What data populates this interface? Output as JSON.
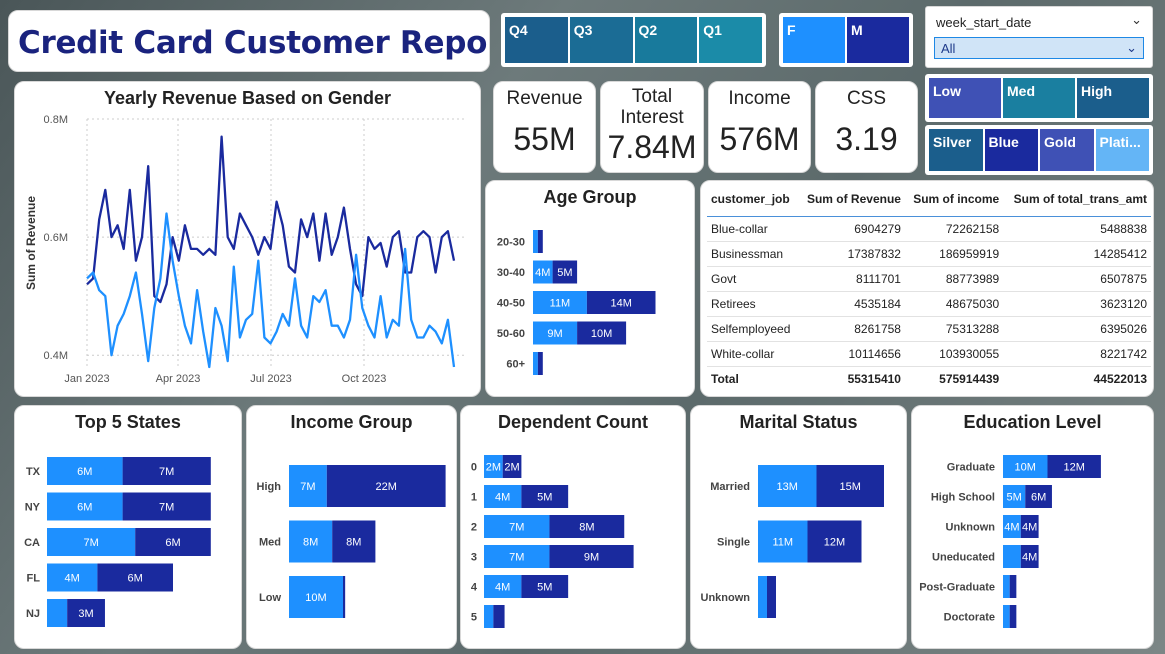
{
  "title": "Credit Card Customer Report",
  "colors": {
    "female": "#1e90ff",
    "male": "#1a2a9e",
    "navy": "#1a237e"
  },
  "quarters": [
    {
      "label": "Q4",
      "color": "#1b5e8c"
    },
    {
      "label": "Q3",
      "color": "#1b6c95"
    },
    {
      "label": "Q2",
      "color": "#187a9c"
    },
    {
      "label": "Q1",
      "color": "#1b8ba8"
    }
  ],
  "gender": [
    {
      "label": "F",
      "color": "#1e90ff"
    },
    {
      "label": "M",
      "color": "#1a2a9e"
    }
  ],
  "week_filter": {
    "label": "week_start_date",
    "value": "All"
  },
  "income_slicer": [
    {
      "label": "Low",
      "color": "#3f51b5"
    },
    {
      "label": "Med",
      "color": "#1a7fa0"
    },
    {
      "label": "High",
      "color": "#1b5e8c"
    }
  ],
  "card_slicer": [
    {
      "label": "Silver",
      "color": "#1b5e8c"
    },
    {
      "label": "Blue",
      "color": "#1a2a9e"
    },
    {
      "label": "Gold",
      "color": "#3f51b5"
    },
    {
      "label": "Plati...",
      "color": "#64b5f6"
    }
  ],
  "kpis": [
    {
      "label": "Revenue",
      "value": "55M"
    },
    {
      "label": "Total Interest",
      "value": "7.84M"
    },
    {
      "label": "Income",
      "value": "576M"
    },
    {
      "label": "CSS",
      "value": "3.19"
    }
  ],
  "chart_data": [
    {
      "type": "line",
      "title": "Yearly Revenue Based on Gender",
      "ylabel": "Sum of Revenue",
      "ylim": [
        0.38,
        0.8
      ],
      "y_ticks": [
        "0.8M",
        "0.6M",
        "0.4M"
      ],
      "x_ticks": [
        "Jan 2023",
        "Apr 2023",
        "Jul 2023",
        "Oct 2023"
      ],
      "grid": true,
      "series": [
        {
          "name": "M",
          "values": [
            0.52,
            0.53,
            0.63,
            0.68,
            0.6,
            0.62,
            0.58,
            0.68,
            0.56,
            0.6,
            0.72,
            0.5,
            0.49,
            0.52,
            0.6,
            0.56,
            0.62,
            0.58,
            0.58,
            0.57,
            0.58,
            0.57,
            0.77,
            0.6,
            0.58,
            0.64,
            0.62,
            0.6,
            0.57,
            0.6,
            0.58,
            0.66,
            0.62,
            0.55,
            0.54,
            0.63,
            0.6,
            0.64,
            0.56,
            0.64,
            0.57,
            0.6,
            0.65,
            0.58,
            0.52,
            0.5,
            0.6,
            0.58,
            0.59,
            0.55,
            0.6,
            0.61,
            0.54,
            0.54,
            0.6,
            0.61,
            0.6,
            0.54,
            0.6,
            0.61,
            0.56
          ]
        },
        {
          "name": "F",
          "values": [
            0.53,
            0.54,
            0.51,
            0.5,
            0.4,
            0.45,
            0.47,
            0.5,
            0.54,
            0.47,
            0.39,
            0.48,
            0.53,
            0.64,
            0.56,
            0.5,
            0.45,
            0.42,
            0.51,
            0.44,
            0.38,
            0.48,
            0.45,
            0.39,
            0.55,
            0.43,
            0.46,
            0.47,
            0.56,
            0.43,
            0.42,
            0.44,
            0.47,
            0.45,
            0.53,
            0.45,
            0.43,
            0.5,
            0.49,
            0.51,
            0.45,
            0.45,
            0.43,
            0.46,
            0.57,
            0.48,
            0.45,
            0.43,
            0.5,
            0.43,
            0.46,
            0.45,
            0.58,
            0.46,
            0.43,
            0.43,
            0.45,
            0.44,
            0.42,
            0.46,
            0.38
          ]
        }
      ]
    },
    {
      "type": "bar",
      "title": "Age Group",
      "categories": [
        "20-30",
        "30-40",
        "40-50",
        "50-60",
        "60+"
      ],
      "series": [
        {
          "name": "F",
          "values": [
            1,
            4,
            11,
            9,
            1
          ],
          "labels": [
            "",
            "4M",
            "11M",
            "9M",
            ""
          ]
        },
        {
          "name": "M",
          "values": [
            1,
            5,
            14,
            10,
            1
          ],
          "labels": [
            "",
            "5M",
            "14M",
            "10M",
            ""
          ]
        }
      ]
    },
    {
      "type": "bar",
      "title": "Top 5 States",
      "categories": [
        "TX",
        "NY",
        "CA",
        "FL",
        "NJ"
      ],
      "series": [
        {
          "name": "F",
          "values": [
            6,
            6,
            7,
            4,
            1.6
          ],
          "labels": [
            "6M",
            "6M",
            "7M",
            "4M",
            ""
          ]
        },
        {
          "name": "M",
          "values": [
            7,
            7,
            6,
            6,
            3
          ],
          "labels": [
            "7M",
            "7M",
            "6M",
            "6M",
            "3M"
          ]
        }
      ]
    },
    {
      "type": "bar",
      "title": "Income Group",
      "categories": [
        "High",
        "Med",
        "Low"
      ],
      "series": [
        {
          "name": "F",
          "values": [
            7,
            8,
            10
          ],
          "labels": [
            "7M",
            "8M",
            "10M"
          ]
        },
        {
          "name": "M",
          "values": [
            22,
            8,
            0.4
          ],
          "labels": [
            "22M",
            "8M",
            ""
          ]
        }
      ]
    },
    {
      "type": "bar",
      "title": "Dependent Count",
      "categories": [
        "0",
        "1",
        "2",
        "3",
        "4",
        "5"
      ],
      "series": [
        {
          "name": "F",
          "values": [
            2,
            4,
            7,
            7,
            4,
            1
          ],
          "labels": [
            "2M",
            "4M",
            "7M",
            "7M",
            "4M",
            ""
          ]
        },
        {
          "name": "M",
          "values": [
            2,
            5,
            8,
            9,
            5,
            1.2
          ],
          "labels": [
            "2M",
            "5M",
            "8M",
            "9M",
            "5M",
            ""
          ]
        }
      ]
    },
    {
      "type": "bar",
      "title": "Marital Status",
      "categories": [
        "Married",
        "Single",
        "Unknown"
      ],
      "series": [
        {
          "name": "F",
          "values": [
            13,
            11,
            2
          ],
          "labels": [
            "13M",
            "11M",
            ""
          ]
        },
        {
          "name": "M",
          "values": [
            15,
            12,
            2
          ],
          "labels": [
            "15M",
            "12M",
            ""
          ]
        }
      ]
    },
    {
      "type": "bar",
      "title": "Education Level",
      "categories": [
        "Graduate",
        "High School",
        "Unknown",
        "Uneducated",
        "Post-Graduate",
        "Doctorate"
      ],
      "series": [
        {
          "name": "F",
          "values": [
            10,
            5,
            4,
            4,
            1.5,
            1.5
          ],
          "labels": [
            "10M",
            "5M",
            "4M",
            "",
            "",
            ""
          ]
        },
        {
          "name": "M",
          "values": [
            12,
            6,
            4,
            4,
            1.5,
            1.5
          ],
          "labels": [
            "12M",
            "6M",
            "4M",
            "4M",
            "",
            ""
          ]
        }
      ]
    },
    {
      "type": "table",
      "columns": [
        "customer_job",
        "Sum of Revenue",
        "Sum of income",
        "Sum of total_trans_amt"
      ],
      "rows": [
        [
          "Blue-collar",
          "6904279",
          "72262158",
          "5488838"
        ],
        [
          "Businessman",
          "17387832",
          "186959919",
          "14285412"
        ],
        [
          "Govt",
          "8111701",
          "88773989",
          "6507875"
        ],
        [
          "Retirees",
          "4535184",
          "48675030",
          "3623120"
        ],
        [
          "Selfemployeed",
          "8261758",
          "75313288",
          "6395026"
        ],
        [
          "White-collar",
          "10114656",
          "103930055",
          "8221742"
        ]
      ],
      "total": [
        "Total",
        "55315410",
        "575914439",
        "44522013"
      ]
    }
  ]
}
